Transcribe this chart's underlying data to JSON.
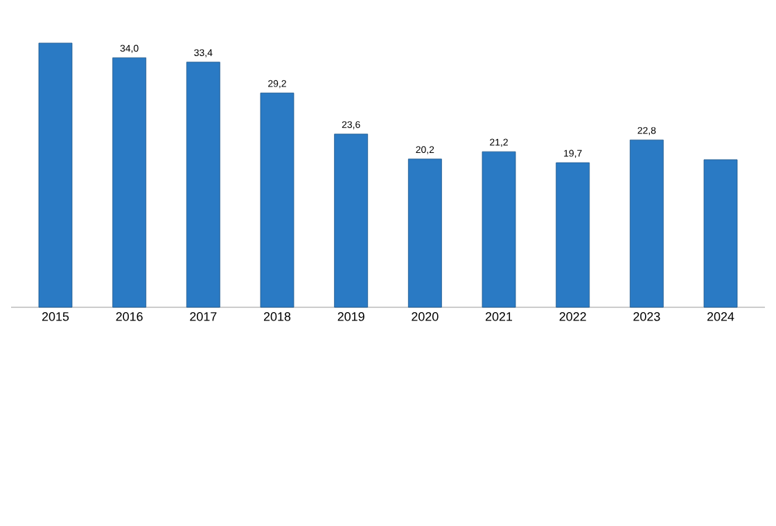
{
  "chart_data": {
    "type": "bar",
    "categories": [
      "2015",
      "2016",
      "2017",
      "2018",
      "2019",
      "2020",
      "2021",
      "2022",
      "2023",
      "2024"
    ],
    "values": [
      36.0,
      34.0,
      33.4,
      29.2,
      23.6,
      20.2,
      21.2,
      19.7,
      22.8,
      20.1
    ],
    "value_labels": [
      null,
      "34,0",
      "33,4",
      "29,2",
      "23,6",
      "20,2",
      "21,2",
      "19,7",
      "22,8",
      null
    ],
    "color": "#2a7ac4"
  }
}
